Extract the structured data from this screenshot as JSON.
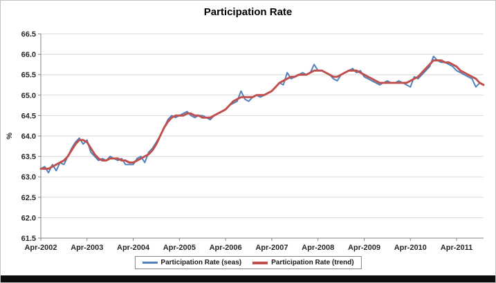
{
  "title": "Participation Rate",
  "chart_data": {
    "type": "line",
    "title": "Participation Rate",
    "xlabel": "",
    "ylabel": "%",
    "ylim": [
      61.5,
      66.5
    ],
    "ytick_step": 0.5,
    "grid": "horizontal",
    "legend_position": "bottom",
    "y_tick_labels": [
      "61.5",
      "62.0",
      "62.5",
      "63.0",
      "63.5",
      "64.0",
      "64.5",
      "65.0",
      "65.5",
      "66.0",
      "66.5"
    ],
    "x_tick_labels": [
      "Apr-2002",
      "Apr-2003",
      "Apr-2004",
      "Apr-2005",
      "Apr-2006",
      "Apr-2007",
      "Apr-2008",
      "Apr-2009",
      "Apr-2010",
      "Apr-2011"
    ],
    "x_tick_indices": [
      0,
      12,
      24,
      36,
      48,
      60,
      72,
      84,
      96,
      108
    ],
    "x_frequency": "monthly",
    "series": [
      {
        "name": "Participation Rate (seas)",
        "color": "#4F81BD",
        "width": 2,
        "values": [
          63.2,
          63.25,
          63.1,
          63.3,
          63.15,
          63.35,
          63.3,
          63.5,
          63.7,
          63.85,
          63.95,
          63.8,
          63.9,
          63.6,
          63.5,
          63.4,
          63.45,
          63.4,
          63.5,
          63.45,
          63.4,
          63.45,
          63.3,
          63.3,
          63.3,
          63.45,
          63.5,
          63.35,
          63.6,
          63.7,
          63.85,
          64.0,
          64.2,
          64.4,
          64.5,
          64.45,
          64.5,
          64.55,
          64.6,
          64.5,
          64.45,
          64.5,
          64.5,
          64.45,
          64.4,
          64.5,
          64.55,
          64.6,
          64.65,
          64.75,
          64.8,
          64.85,
          65.1,
          64.9,
          64.85,
          64.95,
          65.0,
          64.95,
          65.0,
          65.05,
          65.1,
          65.2,
          65.3,
          65.25,
          65.55,
          65.4,
          65.45,
          65.5,
          65.55,
          65.5,
          65.55,
          65.75,
          65.6,
          65.6,
          65.55,
          65.5,
          65.4,
          65.35,
          65.5,
          65.55,
          65.6,
          65.65,
          65.55,
          65.6,
          65.45,
          65.4,
          65.35,
          65.3,
          65.25,
          65.3,
          65.35,
          65.3,
          65.3,
          65.35,
          65.3,
          65.25,
          65.2,
          65.45,
          65.4,
          65.5,
          65.6,
          65.7,
          65.95,
          65.85,
          65.8,
          65.8,
          65.75,
          65.7,
          65.6,
          65.55,
          65.5,
          65.45,
          65.4,
          65.2,
          65.3,
          65.25
        ]
      },
      {
        "name": "Participation Rate (trend)",
        "color": "#C0504D",
        "width": 3,
        "values": [
          63.2,
          63.2,
          63.2,
          63.25,
          63.3,
          63.35,
          63.4,
          63.5,
          63.65,
          63.8,
          63.9,
          63.9,
          63.85,
          63.7,
          63.55,
          63.45,
          63.4,
          63.4,
          63.45,
          63.45,
          63.45,
          63.4,
          63.4,
          63.35,
          63.35,
          63.4,
          63.45,
          63.5,
          63.55,
          63.65,
          63.8,
          64.0,
          64.2,
          64.35,
          64.45,
          64.5,
          64.5,
          64.5,
          64.55,
          64.55,
          64.5,
          64.5,
          64.45,
          64.45,
          64.45,
          64.5,
          64.55,
          64.6,
          64.65,
          64.75,
          64.85,
          64.9,
          64.95,
          64.95,
          64.95,
          64.95,
          65.0,
          65.0,
          65.0,
          65.05,
          65.1,
          65.2,
          65.3,
          65.35,
          65.4,
          65.45,
          65.45,
          65.5,
          65.5,
          65.5,
          65.55,
          65.6,
          65.6,
          65.6,
          65.55,
          65.5,
          65.45,
          65.45,
          65.5,
          65.55,
          65.6,
          65.6,
          65.6,
          65.55,
          65.5,
          65.45,
          65.4,
          65.35,
          65.3,
          65.3,
          65.3,
          65.3,
          65.3,
          65.3,
          65.3,
          65.3,
          65.35,
          65.4,
          65.45,
          65.55,
          65.65,
          65.75,
          65.85,
          65.85,
          65.85,
          65.8,
          65.8,
          65.75,
          65.7,
          65.6,
          65.55,
          65.5,
          65.45,
          65.4,
          65.3,
          65.25
        ]
      }
    ],
    "legend": {
      "seas_label": "Participation Rate (seas)",
      "trend_label": "Participation Rate (trend)"
    },
    "axis_color": "#808080",
    "gridline_color": "#d9d9d9"
  }
}
